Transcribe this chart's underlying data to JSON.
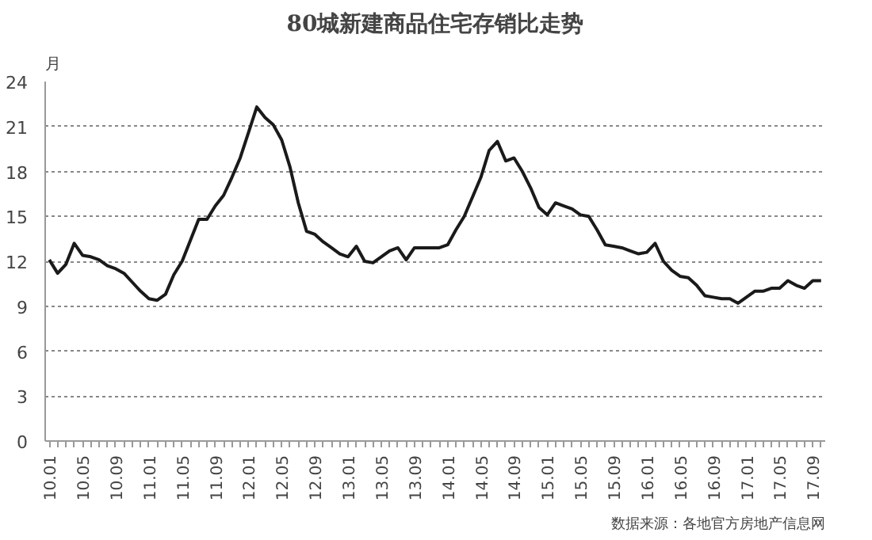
{
  "chart_data": {
    "type": "line",
    "title": "80城新建商品住宅存销比走势",
    "ylabel": "月",
    "categories": [
      "10.01",
      null,
      null,
      null,
      "10.05",
      null,
      null,
      null,
      "10.09",
      null,
      null,
      null,
      "11.01",
      null,
      null,
      null,
      "11.05",
      null,
      null,
      null,
      "11.09",
      null,
      null,
      null,
      "12.01",
      null,
      null,
      null,
      "12.05",
      null,
      null,
      null,
      "12.09",
      null,
      null,
      null,
      "13.01",
      null,
      null,
      null,
      "13.05",
      null,
      null,
      null,
      "13.09",
      null,
      null,
      null,
      "14.01",
      null,
      null,
      null,
      "14.05",
      null,
      null,
      null,
      "14.09",
      null,
      null,
      null,
      "15.01",
      null,
      null,
      null,
      "15.05",
      null,
      null,
      null,
      "15.09",
      null,
      null,
      null,
      "16.01",
      null,
      null,
      null,
      "16.05",
      null,
      null,
      null,
      "16.09",
      null,
      null,
      null,
      "17.01",
      null,
      null,
      null,
      "17.05",
      null,
      null,
      null,
      "17.09",
      null
    ],
    "series": [
      {
        "color": "#1a1a1a",
        "values": [
          12.1,
          11.2,
          11.8,
          13.2,
          12.4,
          12.3,
          12.1,
          11.7,
          11.5,
          11.2,
          10.6,
          10.0,
          9.5,
          9.4,
          9.8,
          11.1,
          12.0,
          13.4,
          14.8,
          14.8,
          15.7,
          16.4,
          17.6,
          18.9,
          20.6,
          22.3,
          21.6,
          21.1,
          20.1,
          18.3,
          15.9,
          14.0,
          13.8,
          13.3,
          12.9,
          12.5,
          12.3,
          13.0,
          12.0,
          11.9,
          12.3,
          12.7,
          12.9,
          12.1,
          12.9,
          12.9,
          12.9,
          12.9,
          13.1,
          14.1,
          15.0,
          16.3,
          17.6,
          19.4,
          20.0,
          18.7,
          18.9,
          18.0,
          16.9,
          15.6,
          15.1,
          15.9,
          15.7,
          15.5,
          15.1,
          15.0,
          14.1,
          13.1,
          13.0,
          12.9,
          12.7,
          12.5,
          12.6,
          13.2,
          12.0,
          11.4,
          11.0,
          10.9,
          10.4,
          9.7,
          9.6,
          9.5,
          9.5,
          9.2,
          9.6,
          10.0,
          10.0,
          10.2,
          10.2,
          10.7,
          10.4,
          10.2,
          10.7,
          10.7
        ]
      }
    ],
    "ylim": [
      0,
      24
    ],
    "yticks": [
      0,
      3,
      6,
      9,
      12,
      15,
      18,
      21,
      24
    ],
    "grid": "y",
    "line_style": "solid",
    "marker": "none",
    "annotations": [
      "数据来源：各地官方房地产信息网"
    ]
  }
}
